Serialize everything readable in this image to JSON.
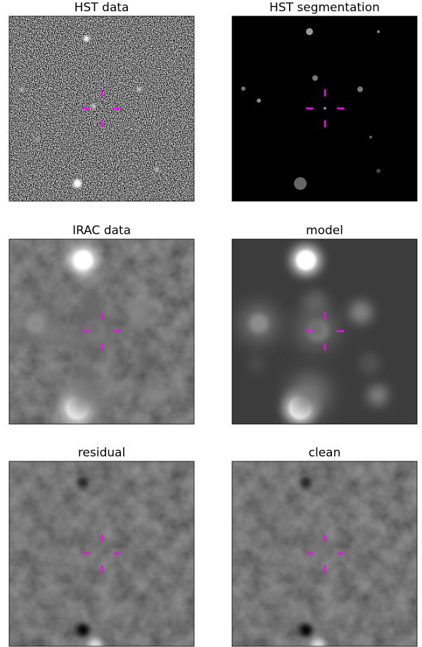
{
  "panels": [
    {
      "title": "HST data"
    },
    {
      "title": "HST segmentation"
    },
    {
      "title": "IRAC data"
    },
    {
      "title": "model"
    },
    {
      "title": "residual"
    },
    {
      "title": "clean"
    }
  ]
}
